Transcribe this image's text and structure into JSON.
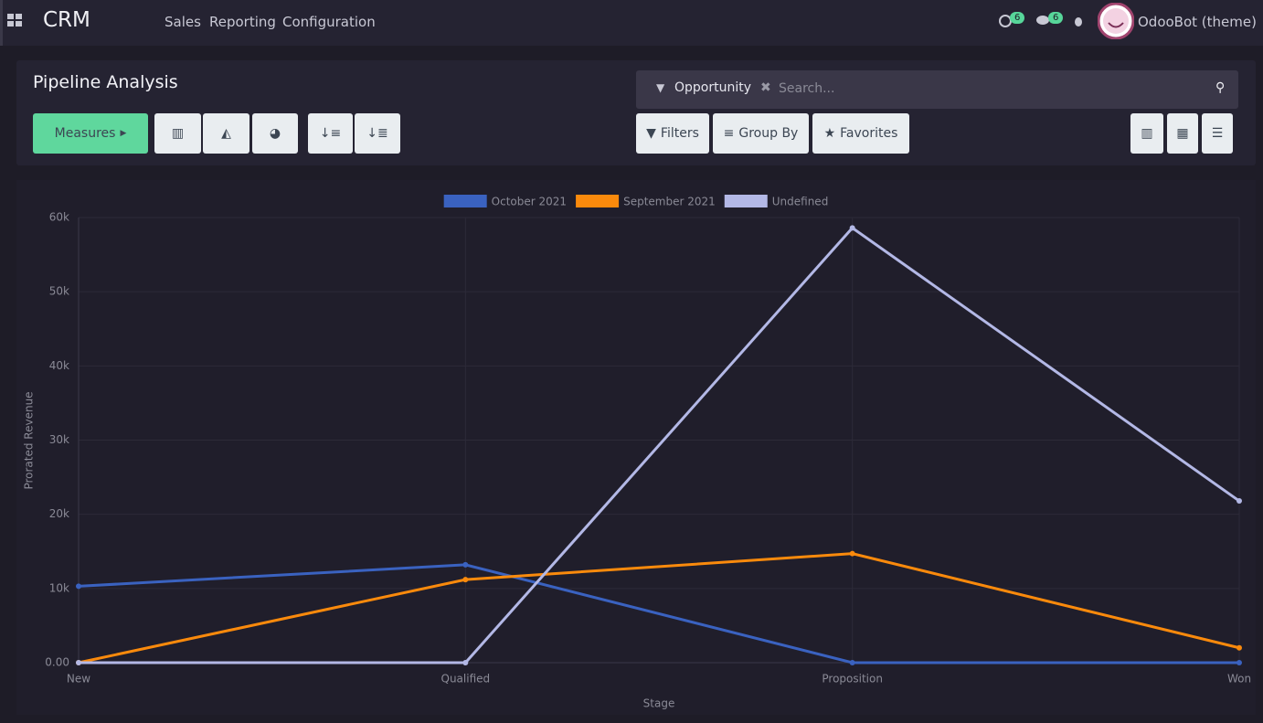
{
  "navbar": {
    "app": "CRM",
    "menu": [
      "Sales",
      "Reporting",
      "Configuration"
    ],
    "activities": 6,
    "messages": 6,
    "user": "OdooBot (theme)"
  },
  "control_panel": {
    "title": "Pipeline Analysis",
    "measures": "Measures",
    "facet": "Opportunity",
    "search_placeholder": "Search...",
    "filters": "Filters",
    "group_by": "Group By",
    "favorites": "Favorites"
  },
  "chart_data": {
    "type": "line",
    "x_label": "Stage",
    "y_label": "Prorated Revenue",
    "categories": [
      "New",
      "Qualified",
      "Proposition",
      "Won"
    ],
    "series": [
      {
        "name": "October 2021",
        "color": "#3a62c0",
        "values": [
          10300,
          13200,
          0,
          0
        ]
      },
      {
        "name": "September 2021",
        "color": "#fa8a0c",
        "values": [
          0,
          11200,
          14700,
          2000
        ]
      },
      {
        "name": "Undefined",
        "color": "#b3b8e6",
        "values": [
          0,
          0,
          58600,
          21800
        ]
      }
    ],
    "ylim": [
      0,
      60000
    ],
    "yticks": [
      {
        "value": 0,
        "label": "0.00"
      },
      {
        "value": 10000,
        "label": "10k"
      },
      {
        "value": 20000,
        "label": "20k"
      },
      {
        "value": 30000,
        "label": "30k"
      },
      {
        "value": 40000,
        "label": "40k"
      },
      {
        "value": 50000,
        "label": "50k"
      },
      {
        "value": 60000,
        "label": "60k"
      }
    ],
    "grid": true,
    "legend": "top"
  }
}
